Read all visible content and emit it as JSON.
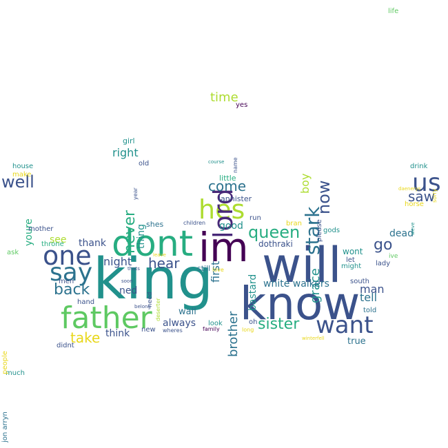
{
  "palette": {
    "navy": "#3b528b",
    "purple": "#482878",
    "darkpurple": "#440154",
    "teal": "#21918c",
    "tealblue": "#2c728e",
    "green": "#27ad81",
    "lightgreen": "#5ec962",
    "yellowgreen": "#addc30",
    "yellow": "#e8d71a",
    "gray": "#31688e"
  },
  "words": [
    {
      "id": "king",
      "text": "king",
      "color": "teal",
      "size": 82
    },
    {
      "id": "will",
      "text": "will",
      "color": "navy",
      "size": 70
    },
    {
      "id": "know",
      "text": "know",
      "color": "navy",
      "size": 66
    },
    {
      "id": "im",
      "text": "im",
      "color": "darkpurple",
      "size": 58
    },
    {
      "id": "dont",
      "text": "dont",
      "color": "green",
      "size": 52
    },
    {
      "id": "father",
      "text": "father",
      "color": "lightgreen",
      "size": 44
    },
    {
      "id": "one",
      "text": "one",
      "color": "navy",
      "size": 38
    },
    {
      "id": "say",
      "text": "say",
      "color": "tealblue",
      "size": 36
    },
    {
      "id": "hes",
      "text": "hes",
      "color": "yellowgreen",
      "size": 38
    },
    {
      "id": "lord",
      "text": "lord",
      "color": "purple",
      "size": 38
    },
    {
      "id": "us",
      "text": "us",
      "color": "navy",
      "size": 36
    },
    {
      "id": "want",
      "text": "want",
      "color": "navy",
      "size": 34
    },
    {
      "id": "stark",
      "text": "stark",
      "color": "tealblue",
      "size": 28
    },
    {
      "id": "now",
      "text": "now",
      "color": "navy",
      "size": 24
    },
    {
      "id": "queen",
      "text": "queen",
      "color": "green",
      "size": 24
    },
    {
      "id": "well",
      "text": "well",
      "color": "navy",
      "size": 24
    },
    {
      "id": "sister",
      "text": "sister",
      "color": "green",
      "size": 22
    },
    {
      "id": "never",
      "text": "never",
      "color": "green",
      "size": 22
    },
    {
      "id": "back",
      "text": "back",
      "color": "tealblue",
      "size": 22
    },
    {
      "id": "take",
      "text": "take",
      "color": "yellow",
      "size": 20
    },
    {
      "id": "come",
      "text": "come",
      "color": "tealblue",
      "size": 20
    },
    {
      "id": "hear",
      "text": "hear",
      "color": "navy",
      "size": 20
    },
    {
      "id": "brother",
      "text": "brother",
      "color": "tealblue",
      "size": 18
    },
    {
      "id": "go",
      "text": "go",
      "color": "navy",
      "size": 22
    },
    {
      "id": "saw",
      "text": "saw",
      "color": "navy",
      "size": 20
    },
    {
      "id": "grace",
      "text": "grace",
      "color": "teal",
      "size": 18
    },
    {
      "id": "time",
      "text": "time",
      "color": "yellowgreen",
      "size": 18
    },
    {
      "id": "right",
      "text": "right",
      "color": "teal",
      "size": 16
    },
    {
      "id": "first",
      "text": "first",
      "color": "tealblue",
      "size": 16
    },
    {
      "id": "night",
      "text": "night",
      "color": "navy",
      "size": 16
    },
    {
      "id": "boy",
      "text": "boy",
      "color": "yellowgreen",
      "size": 16
    },
    {
      "id": "white-walkers",
      "text": "white walkers",
      "color": "tealblue",
      "size": 14
    },
    {
      "id": "tell",
      "text": "tell",
      "color": "tealblue",
      "size": 16
    },
    {
      "id": "man",
      "text": "man",
      "color": "navy",
      "size": 16
    },
    {
      "id": "bastard",
      "text": "bastard",
      "color": "teal",
      "size": 14
    },
    {
      "id": "good",
      "text": "good",
      "color": "teal",
      "size": 14
    },
    {
      "id": "always",
      "text": "always",
      "color": "navy",
      "size": 14
    },
    {
      "id": "ned",
      "text": "ned",
      "color": "navy",
      "size": 14
    },
    {
      "id": "thank",
      "text": "thank",
      "color": "navy",
      "size": 14
    },
    {
      "id": "think",
      "text": "think",
      "color": "navy",
      "size": 14
    },
    {
      "id": "youre",
      "text": "youre",
      "color": "green",
      "size": 14
    },
    {
      "id": "see",
      "text": "see",
      "color": "yellowgreen",
      "size": 14
    },
    {
      "id": "thing",
      "text": "thing",
      "color": "teal",
      "size": 14
    },
    {
      "id": "dead",
      "text": "dead",
      "color": "tealblue",
      "size": 14
    },
    {
      "id": "true",
      "text": "true",
      "color": "tealblue",
      "size": 13
    },
    {
      "id": "wall",
      "text": "wall",
      "color": "tealblue",
      "size": 13
    },
    {
      "id": "dothraki",
      "text": "dothraki",
      "color": "navy",
      "size": 12
    },
    {
      "id": "wont",
      "text": "wont",
      "color": "teal",
      "size": 12
    },
    {
      "id": "shes",
      "text": "shes",
      "color": "tealblue",
      "size": 11
    },
    {
      "id": "horse",
      "text": "horse",
      "color": "yellow",
      "size": 10
    },
    {
      "id": "lannister",
      "text": "lannister",
      "color": "navy",
      "size": 11
    },
    {
      "id": "little",
      "text": "little",
      "color": "green",
      "size": 11
    },
    {
      "id": "girl",
      "text": "girl",
      "color": "teal",
      "size": 11
    },
    {
      "id": "old",
      "text": "old",
      "color": "navy",
      "size": 10
    },
    {
      "id": "house",
      "text": "house",
      "color": "teal",
      "size": 10
    },
    {
      "id": "make",
      "text": "make",
      "color": "yellow",
      "size": 10
    },
    {
      "id": "mother",
      "text": "mother",
      "color": "navy",
      "size": 10
    },
    {
      "id": "throne",
      "text": "throne",
      "color": "green",
      "size": 10
    },
    {
      "id": "ask",
      "text": "ask",
      "color": "lightgreen",
      "size": 10
    },
    {
      "id": "men",
      "text": "men",
      "color": "navy",
      "size": 10
    },
    {
      "id": "hand",
      "text": "hand",
      "color": "navy",
      "size": 10
    },
    {
      "id": "didnt",
      "text": "didnt",
      "color": "navy",
      "size": 10
    },
    {
      "id": "much",
      "text": "much",
      "color": "teal",
      "size": 10
    },
    {
      "id": "people",
      "text": "people",
      "color": "yellow",
      "size": 10
    },
    {
      "id": "jon-arryn",
      "text": "jon arryn",
      "color": "tealblue",
      "size": 10
    },
    {
      "id": "run",
      "text": "run",
      "color": "navy",
      "size": 10
    },
    {
      "id": "bran",
      "text": "bran",
      "color": "yellow",
      "size": 10
    },
    {
      "id": "please",
      "text": "please",
      "color": "navy",
      "size": 10
    },
    {
      "id": "gods",
      "text": "gods",
      "color": "teal",
      "size": 10
    },
    {
      "id": "children",
      "text": "children",
      "color": "navy",
      "size": 8
    },
    {
      "id": "name",
      "text": "name",
      "color": "navy",
      "size": 8
    },
    {
      "id": "course",
      "text": "course",
      "color": "teal",
      "size": 7
    },
    {
      "id": "year",
      "text": "year",
      "color": "navy",
      "size": 8
    },
    {
      "id": "yes",
      "text": "yes",
      "color": "darkpurple",
      "size": 10
    },
    {
      "id": "still",
      "text": "still",
      "color": "tealblue",
      "size": 11
    },
    {
      "id": "look",
      "text": "look",
      "color": "teal",
      "size": 10
    },
    {
      "id": "family",
      "text": "family",
      "color": "darkpurple",
      "size": 8
    },
    {
      "id": "oh",
      "text": "oh",
      "color": "navy",
      "size": 10
    },
    {
      "id": "long",
      "text": "long",
      "color": "yellow",
      "size": 8
    },
    {
      "id": "told",
      "text": "told",
      "color": "tealblue",
      "size": 10
    },
    {
      "id": "south",
      "text": "south",
      "color": "navy",
      "size": 10
    },
    {
      "id": "might",
      "text": "might",
      "color": "teal",
      "size": 10
    },
    {
      "id": "let",
      "text": "let",
      "color": "navy",
      "size": 10
    },
    {
      "id": "lady",
      "text": "lady",
      "color": "navy",
      "size": 10
    },
    {
      "id": "ive",
      "text": "ive",
      "color": "lightgreen",
      "size": 9
    },
    {
      "id": "soon",
      "text": "soon",
      "color": "navy",
      "size": 7
    },
    {
      "id": "need",
      "text": "need",
      "color": "navy",
      "size": 9
    },
    {
      "id": "deserter",
      "text": "deserter",
      "color": "yellowgreen",
      "size": 8
    },
    {
      "id": "belong",
      "text": "belong",
      "color": "navy",
      "size": 7
    },
    {
      "id": "thats",
      "text": "thats",
      "color": "navy",
      "size": 7
    },
    {
      "id": "leave",
      "text": "leave",
      "color": "yellow",
      "size": 7
    },
    {
      "id": "new",
      "text": "new",
      "color": "navy",
      "size": 10
    },
    {
      "id": "wheres",
      "text": "wheres",
      "color": "navy",
      "size": 8
    },
    {
      "id": "love",
      "text": "love",
      "color": "yellow",
      "size": 8
    },
    {
      "id": "winterfell",
      "text": "winterfell",
      "color": "yellow",
      "size": 7
    },
    {
      "id": "drink",
      "text": "drink",
      "color": "teal",
      "size": 10
    },
    {
      "id": "daenerys",
      "text": "daenerys",
      "color": "yellow",
      "size": 7
    },
    {
      "id": "sorry",
      "text": "sorry",
      "color": "yellow",
      "size": 8
    },
    {
      "id": "weve",
      "text": "weve",
      "color": "teal",
      "size": 7
    },
    {
      "id": "life",
      "text": "life",
      "color": "lightgreen",
      "size": 10
    }
  ]
}
